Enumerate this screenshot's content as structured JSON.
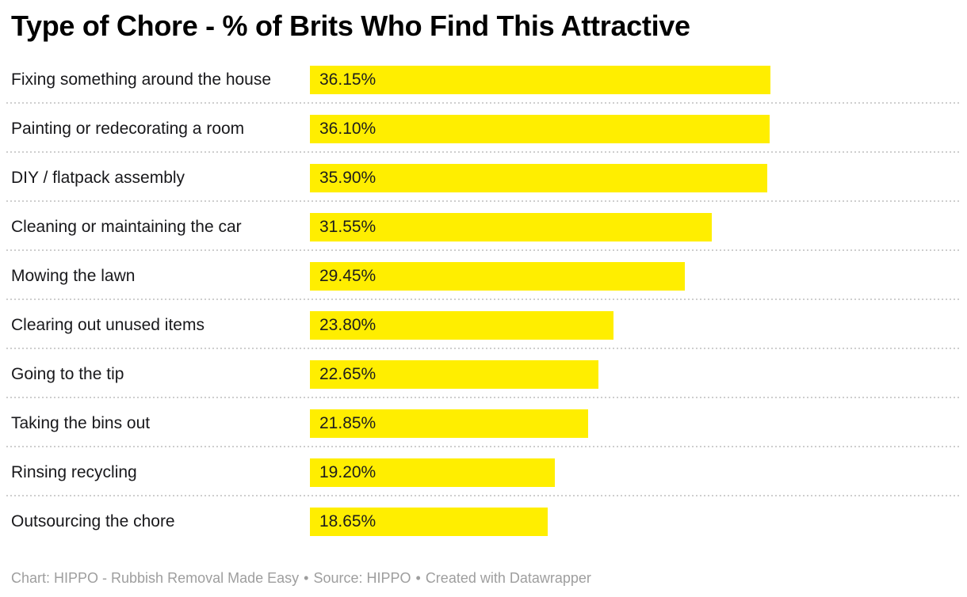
{
  "header": {
    "title": "Type of Chore - % of Brits Who Find This Attractive"
  },
  "colors": {
    "bar": "#ffee00",
    "title": "#000000",
    "label": "#18181b",
    "value_label": "#1d1d1d",
    "separator": "#cecece",
    "footer": "#9e9e9e",
    "background": "#ffffff"
  },
  "chart_data": {
    "type": "bar",
    "orientation": "horizontal",
    "title": "Type of Chore - % of Brits Who Find This Attractive",
    "categories": [
      "Fixing something around the house",
      "Painting or redecorating a room",
      "DIY / flatpack assembly",
      "Cleaning or maintaining the car",
      "Mowing the lawn",
      "Clearing out unused items",
      "Going to the tip",
      "Taking the bins out",
      "Rinsing recycling",
      "Outsourcing the chore"
    ],
    "values": [
      36.15,
      36.1,
      35.9,
      31.55,
      29.45,
      23.8,
      22.65,
      21.85,
      19.2,
      18.65
    ],
    "value_labels": [
      "36.15%",
      "36.10%",
      "35.90%",
      "31.55%",
      "29.45%",
      "23.80%",
      "22.65%",
      "21.85%",
      "19.20%",
      "18.65%"
    ],
    "xlabel": "",
    "ylabel": "",
    "xlim": [
      0,
      36.15
    ],
    "grid": false,
    "legend": false,
    "value_label_position": "inside-start",
    "bar_color": "#ffee00"
  },
  "footer": {
    "chart_credit": "Chart: HIPPO - Rubbish Removal Made Easy",
    "separator": "•",
    "source_credit": "Source: HIPPO",
    "created_credit": "Created with Datawrapper"
  }
}
